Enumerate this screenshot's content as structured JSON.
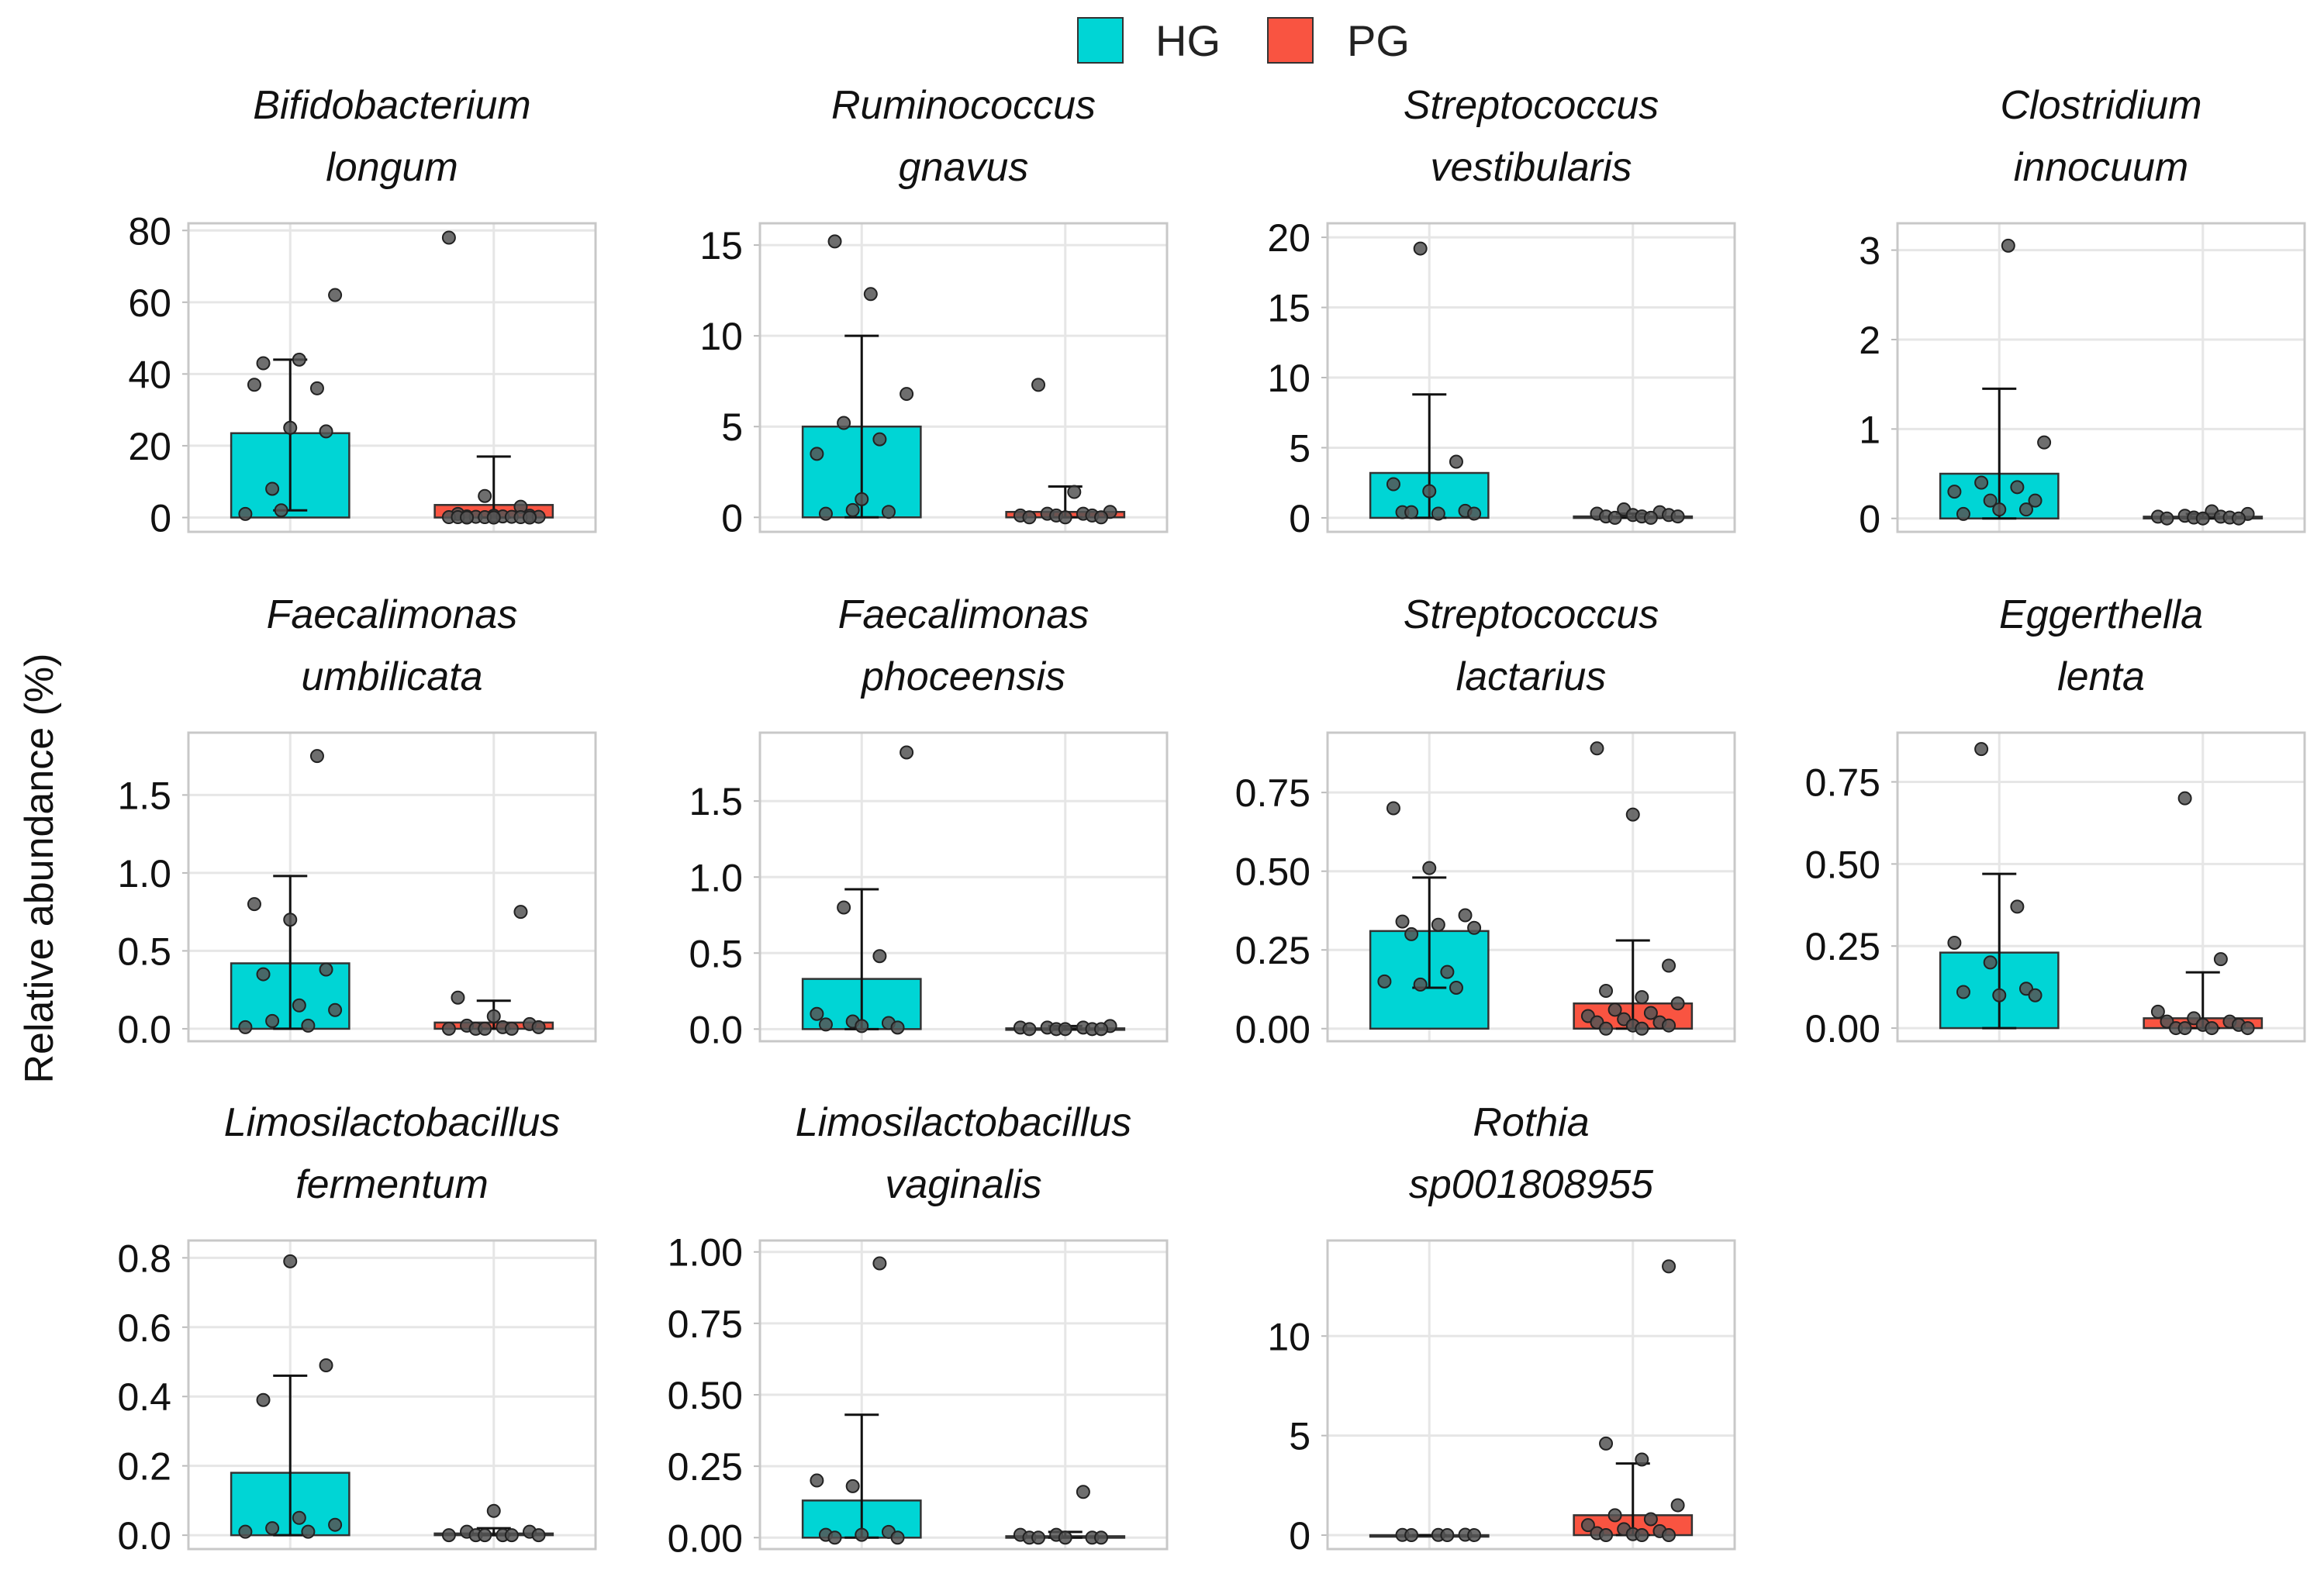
{
  "legend": {
    "items": [
      {
        "label": "HG",
        "color": "#00d5d5"
      },
      {
        "label": "PG",
        "color": "#f95441"
      }
    ]
  },
  "y_axis_label": "Relative abundance (%)",
  "point_color": "#555555",
  "chart_data": [
    {
      "type": "bar",
      "title_lines": [
        "Bifidobacterium",
        "longum"
      ],
      "categories": [
        "HG",
        "PG"
      ],
      "values": [
        23.5,
        3.5
      ],
      "error_high": [
        44,
        17
      ],
      "error_low": [
        2,
        0
      ],
      "points": [
        [
          1,
          2,
          36,
          37,
          25,
          24,
          43,
          44,
          62,
          8
        ],
        [
          78,
          6,
          3,
          1,
          0.5,
          0.5,
          0.3,
          0.3,
          0.2,
          0.2,
          0.2,
          0.1,
          0.1,
          0.1,
          0.1,
          0,
          0,
          0
        ]
      ],
      "ylim": [
        -4,
        82
      ],
      "yticks": [
        0,
        20,
        40,
        60,
        80
      ],
      "tick_labels": [
        "0",
        "20",
        "40",
        "60",
        "80"
      ]
    },
    {
      "type": "bar",
      "title_lines": [
        "Ruminococcus",
        "gnavus"
      ],
      "categories": [
        "HG",
        "PG"
      ],
      "values": [
        5,
        0.3
      ],
      "error_high": [
        10,
        1.7
      ],
      "error_low": [
        0,
        0
      ],
      "points": [
        [
          15.2,
          12.3,
          6.8,
          5.2,
          4.3,
          3.5,
          0.4,
          0.3,
          0.2,
          1.0
        ],
        [
          7.3,
          1.4,
          0.3,
          0.2,
          0.2,
          0.1,
          0.1,
          0.1,
          0,
          0,
          0
        ]
      ],
      "ylim": [
        -0.8,
        16.2
      ],
      "yticks": [
        0,
        5,
        10,
        15
      ],
      "tick_labels": [
        "0",
        "5",
        "10",
        "15"
      ]
    },
    {
      "type": "bar",
      "title_lines": [
        "Streptococcus",
        "vestibularis"
      ],
      "categories": [
        "HG",
        "PG"
      ],
      "values": [
        3.2,
        0.1
      ],
      "error_high": [
        8.8,
        0.3
      ],
      "error_low": [
        0,
        0
      ],
      "points": [
        [
          19.2,
          4.0,
          2.4,
          1.9,
          0.5,
          0.4,
          0.3,
          0.3,
          0.4
        ],
        [
          0.6,
          0.4,
          0.3,
          0.2,
          0.2,
          0.1,
          0.1,
          0.1,
          0,
          0
        ]
      ],
      "ylim": [
        -1,
        21
      ],
      "yticks": [
        0,
        5,
        10,
        15,
        20
      ],
      "tick_labels": [
        "0",
        "5",
        "10",
        "15",
        "20"
      ]
    },
    {
      "type": "bar",
      "title_lines": [
        "Clostridium",
        "innocuum"
      ],
      "categories": [
        "HG",
        "PG"
      ],
      "values": [
        0.5,
        0.02
      ],
      "error_high": [
        1.45,
        0.05
      ],
      "error_low": [
        0,
        0
      ],
      "points": [
        [
          3.05,
          0.85,
          0.4,
          0.35,
          0.3,
          0.2,
          0.1,
          0.05,
          0.1,
          0.2
        ],
        [
          0.08,
          0.05,
          0.03,
          0.02,
          0.02,
          0.01,
          0.01,
          0,
          0,
          0
        ]
      ],
      "ylim": [
        -0.15,
        3.3
      ],
      "yticks": [
        0,
        1,
        2,
        3
      ],
      "tick_labels": [
        "0",
        "1",
        "2",
        "3"
      ]
    },
    {
      "type": "bar",
      "title_lines": [
        "Faecalimonas",
        "umbilicata"
      ],
      "categories": [
        "HG",
        "PG"
      ],
      "values": [
        0.42,
        0.04
      ],
      "error_high": [
        0.98,
        0.18
      ],
      "error_low": [
        0,
        0
      ],
      "points": [
        [
          1.75,
          0.8,
          0.7,
          0.38,
          0.35,
          0.15,
          0.12,
          0.05,
          0.02,
          0.01
        ],
        [
          0.75,
          0.2,
          0.08,
          0.03,
          0.02,
          0.01,
          0.01,
          0,
          0,
          0,
          0
        ]
      ],
      "ylim": [
        -0.08,
        1.9
      ],
      "yticks": [
        0,
        0.5,
        1.0,
        1.5
      ],
      "tick_labels": [
        "0.0",
        "0.5",
        "1.0",
        "1.5"
      ]
    },
    {
      "type": "bar",
      "title_lines": [
        "Faecalimonas",
        "phoceensis"
      ],
      "categories": [
        "HG",
        "PG"
      ],
      "values": [
        0.33,
        0.005
      ],
      "error_high": [
        0.92,
        0.02
      ],
      "error_low": [
        0,
        0
      ],
      "points": [
        [
          1.82,
          0.8,
          0.48,
          0.1,
          0.05,
          0.04,
          0.03,
          0.02,
          0.01
        ],
        [
          0.02,
          0.01,
          0.01,
          0.01,
          0,
          0,
          0,
          0,
          0
        ]
      ],
      "ylim": [
        -0.08,
        1.95
      ],
      "yticks": [
        0,
        0.5,
        1.0,
        1.5
      ],
      "tick_labels": [
        "0.0",
        "0.5",
        "1.0",
        "1.5"
      ]
    },
    {
      "type": "bar",
      "title_lines": [
        "Streptococcus",
        "lactarius"
      ],
      "categories": [
        "HG",
        "PG"
      ],
      "values": [
        0.31,
        0.08
      ],
      "error_high": [
        0.48,
        0.28
      ],
      "error_low": [
        0.13,
        0
      ],
      "points": [
        [
          0.7,
          0.51,
          0.36,
          0.34,
          0.33,
          0.32,
          0.3,
          0.18,
          0.15,
          0.14,
          0.13
        ],
        [
          0.89,
          0.68,
          0.2,
          0.12,
          0.1,
          0.08,
          0.06,
          0.05,
          0.04,
          0.03,
          0.02,
          0.02,
          0.01,
          0.01,
          0,
          0
        ]
      ],
      "ylim": [
        -0.04,
        0.94
      ],
      "yticks": [
        0,
        0.25,
        0.5,
        0.75
      ],
      "tick_labels": [
        "0.00",
        "0.25",
        "0.50",
        "0.75"
      ]
    },
    {
      "type": "bar",
      "title_lines": [
        "Eggerthella",
        "lenta"
      ],
      "categories": [
        "HG",
        "PG"
      ],
      "values": [
        0.23,
        0.03
      ],
      "error_high": [
        0.47,
        0.17
      ],
      "error_low": [
        0,
        0
      ],
      "points": [
        [
          0.85,
          0.37,
          0.26,
          0.2,
          0.12,
          0.11,
          0.1,
          0.1
        ],
        [
          0.7,
          0.21,
          0.05,
          0.03,
          0.02,
          0.02,
          0.01,
          0.01,
          0,
          0,
          0,
          0
        ]
      ],
      "ylim": [
        -0.04,
        0.9
      ],
      "yticks": [
        0,
        0.25,
        0.5,
        0.75
      ],
      "tick_labels": [
        "0.00",
        "0.25",
        "0.50",
        "0.75"
      ]
    },
    {
      "type": "bar",
      "title_lines": [
        "Limosilactobacillus",
        "fermentum"
      ],
      "categories": [
        "HG",
        "PG"
      ],
      "values": [
        0.18,
        0.005
      ],
      "error_high": [
        0.46,
        0.02
      ],
      "error_low": [
        0,
        0
      ],
      "points": [
        [
          0.79,
          0.49,
          0.39,
          0.05,
          0.03,
          0.02,
          0.01,
          0.01
        ],
        [
          0.07,
          0.01,
          0.01,
          0,
          0,
          0,
          0,
          0,
          0
        ]
      ],
      "ylim": [
        -0.04,
        0.85
      ],
      "yticks": [
        0,
        0.2,
        0.4,
        0.6,
        0.8
      ],
      "tick_labels": [
        "0.0",
        "0.2",
        "0.4",
        "0.6",
        "0.8"
      ]
    },
    {
      "type": "bar",
      "title_lines": [
        "Limosilactobacillus",
        "vaginalis"
      ],
      "categories": [
        "HG",
        "PG"
      ],
      "values": [
        0.13,
        0.005
      ],
      "error_high": [
        0.43,
        0.02
      ],
      "error_low": [
        0,
        0
      ],
      "points": [
        [
          0.96,
          0.2,
          0.18,
          0.02,
          0.01,
          0.01,
          0,
          0
        ],
        [
          0.16,
          0.01,
          0.01,
          0,
          0,
          0,
          0,
          0
        ]
      ],
      "ylim": [
        -0.04,
        1.04
      ],
      "yticks": [
        0,
        0.25,
        0.5,
        0.75,
        1.0
      ],
      "tick_labels": [
        "0.00",
        "0.25",
        "0.50",
        "0.75",
        "1.00"
      ]
    },
    {
      "type": "bar",
      "title_lines": [
        "Rothia",
        "sp001808955"
      ],
      "categories": [
        "HG",
        "PG"
      ],
      "values": [
        0,
        1
      ],
      "error_high": [
        0,
        3.6
      ],
      "error_low": [
        0,
        0
      ],
      "points": [
        [
          0.02,
          0.01,
          0.01,
          0,
          0,
          0
        ],
        [
          13.5,
          4.6,
          3.8,
          1.5,
          1.0,
          0.8,
          0.5,
          0.3,
          0.2,
          0.1,
          0.05,
          0,
          0,
          0
        ]
      ],
      "ylim": [
        -0.7,
        14.8
      ],
      "yticks": [
        0,
        5,
        10
      ],
      "tick_labels": [
        "0",
        "5",
        "10"
      ]
    }
  ]
}
